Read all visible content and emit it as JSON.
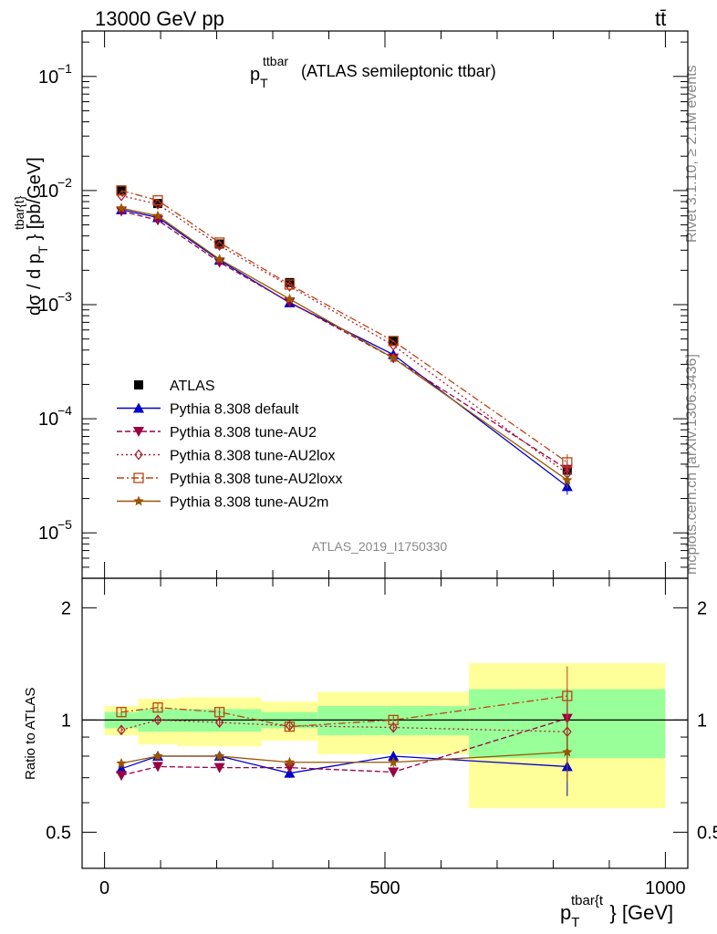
{
  "header": {
    "energy_label": "13000 GeV pp",
    "process_label": "tt̄"
  },
  "side_labels": {
    "rivet": "Rivet 3.1.10, ≥ 2.1M events",
    "mcplots": "mcplots.cern.ch [arXiv:1306.3436]"
  },
  "main_plot": {
    "title_main": "p",
    "title_sub": "T",
    "title_sup": "ttbar",
    "title_rest": "(ATLAS semileptonic ttbar)",
    "ylabel_pre": "dσ / d p",
    "ylabel_sub": "T",
    "ylabel_sup": "tbar{t}",
    "ylabel_post": "} [pb/GeV]",
    "watermark": "ATLAS_2019_I1750330",
    "yticks": [
      {
        "label": "10",
        "exp": "−1",
        "value": 0.1
      },
      {
        "label": "10",
        "exp": "−2",
        "value": 0.01
      },
      {
        "label": "10",
        "exp": "−3",
        "value": 0.001
      },
      {
        "label": "10",
        "exp": "−4",
        "value": 0.0001
      },
      {
        "label": "10",
        "exp": "−5",
        "value": 1e-05
      }
    ]
  },
  "ratio_plot": {
    "ylabel": "Ratio to ATLAS",
    "yticks": [
      "0.5",
      "1",
      "2"
    ],
    "ytick_values": [
      0.5,
      1,
      2
    ]
  },
  "xaxis": {
    "ticks": [
      "0",
      "500",
      "1000"
    ],
    "tick_values": [
      0,
      500,
      1000
    ],
    "label_main": "p",
    "label_sub": "T",
    "label_sup": "tbar{t",
    "label_post": "} [GeV]"
  },
  "legend": [
    {
      "name": "ATLAS",
      "color": "#000000",
      "marker": "square-filled",
      "dash": ""
    },
    {
      "name": "Pythia 8.308 default",
      "color": "#0000cc",
      "marker": "triangle-up",
      "dash": ""
    },
    {
      "name": "Pythia 8.308 tune-AU2",
      "color": "#990044",
      "marker": "triangle-down",
      "dash": "6,3"
    },
    {
      "name": "Pythia 8.308 tune-AU2lox",
      "color": "#aa2233",
      "marker": "diamond-open",
      "dash": "2,3"
    },
    {
      "name": "Pythia 8.308 tune-AU2loxx",
      "color": "#bb4411",
      "marker": "square-open",
      "dash": "8,3,2,3"
    },
    {
      "name": "Pythia 8.308 tune-AU2m",
      "color": "#995500",
      "marker": "star",
      "dash": ""
    }
  ],
  "chart_data": [
    {
      "type": "line",
      "title": "p_T^ttbar (ATLAS semileptonic ttbar)",
      "xlabel": "p_T^tbar{t} [GeV]",
      "ylabel": "dσ / d p_T^tbar{t}} [pb/GeV]",
      "log_y": true,
      "xlim": [
        -40,
        1040
      ],
      "ylim": [
        4e-06,
        0.25
      ],
      "x": [
        30,
        95,
        205,
        330,
        515,
        825
      ],
      "bin_edges": [
        0,
        60,
        130,
        280,
        380,
        650,
        1000
      ],
      "series": [
        {
          "name": "ATLAS",
          "values": [
            0.0101,
            0.0077,
            0.0034,
            0.00156,
            0.00048,
            3.55e-05
          ]
        },
        {
          "name": "Pythia 8.308 default",
          "values": [
            0.0068,
            0.0058,
            0.00245,
            0.00104,
            0.000365,
            2.55e-05
          ]
        },
        {
          "name": "Pythia 8.308 tune-AU2",
          "values": [
            0.0066,
            0.0055,
            0.00235,
            0.00105,
            0.00034,
            3.6e-05
          ]
        },
        {
          "name": "Pythia 8.308 tune-AU2lox",
          "values": [
            0.009,
            0.0076,
            0.0033,
            0.00145,
            0.00044,
            3.3e-05
          ]
        },
        {
          "name": "Pythia 8.308 tune-AU2loxx",
          "values": [
            0.01,
            0.0082,
            0.0035,
            0.0015,
            0.00048,
            4.15e-05
          ]
        },
        {
          "name": "Pythia 8.308 tune-AU2m",
          "values": [
            0.007,
            0.006,
            0.0025,
            0.00112,
            0.00034,
            2.9e-05
          ]
        }
      ]
    },
    {
      "type": "line",
      "ylabel": "Ratio to ATLAS",
      "log_y": true,
      "ylim": [
        0.4,
        2.4
      ],
      "x": [
        30,
        95,
        205,
        330,
        515,
        825
      ],
      "bands": {
        "green_half_width": [
          0.05,
          0.07,
          0.07,
          0.05,
          0.09,
          0.21
        ],
        "yellow_half_width": [
          0.09,
          0.14,
          0.15,
          0.12,
          0.19,
          0.42
        ]
      },
      "series": [
        {
          "name": "Pythia 8.308 default",
          "values": [
            0.74,
            0.8,
            0.8,
            0.72,
            0.8,
            0.75
          ]
        },
        {
          "name": "Pythia 8.308 tune-AU2",
          "values": [
            0.71,
            0.75,
            0.745,
            0.745,
            0.725,
            1.01
          ]
        },
        {
          "name": "Pythia 8.308 tune-AU2lox",
          "values": [
            0.94,
            1.0,
            0.985,
            0.965,
            0.955,
            0.93
          ]
        },
        {
          "name": "Pythia 8.308 tune-AU2loxx",
          "values": [
            1.05,
            1.08,
            1.05,
            0.96,
            1.0,
            1.16
          ]
        },
        {
          "name": "Pythia 8.308 tune-AU2m",
          "values": [
            0.765,
            0.8,
            0.8,
            0.77,
            0.77,
            0.82
          ]
        }
      ]
    }
  ]
}
